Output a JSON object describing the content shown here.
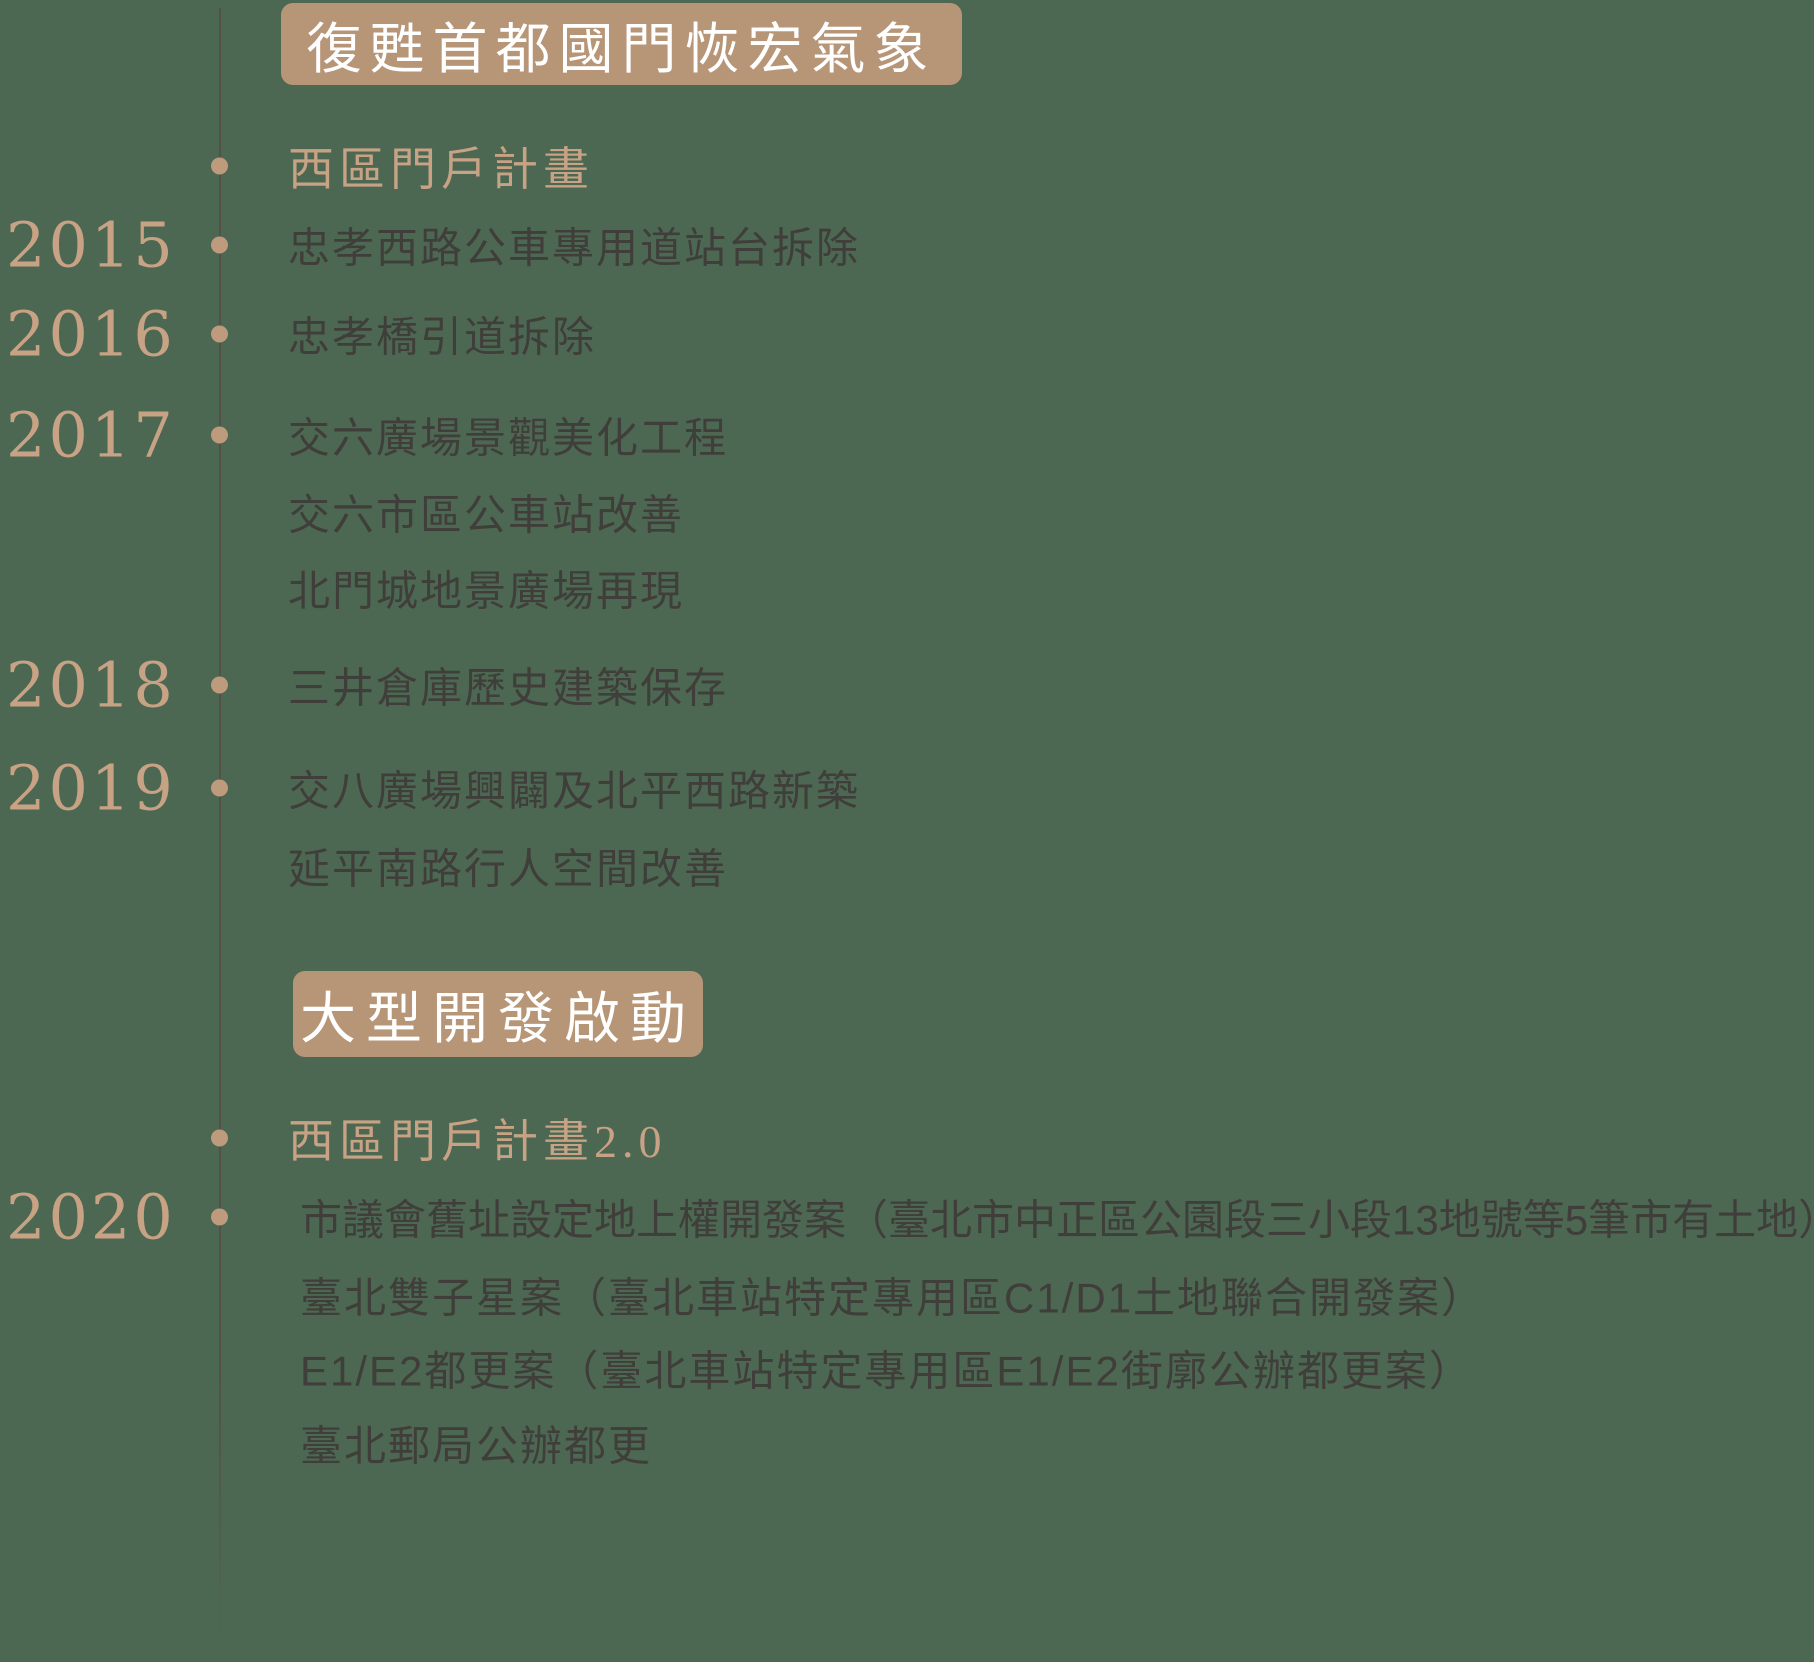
{
  "colors": {
    "background": "#4c6852",
    "header_box": "#b79577",
    "header_text": "#ffffff",
    "accent_text": "#c7a284",
    "dot": "#bf9b7d",
    "dark_text": "#403e3a",
    "axis_line": "#555149"
  },
  "timeline": {
    "sections": [
      {
        "header": "復甦首都國門恢宏氣象",
        "groups": [
          {
            "year": "",
            "items": [
              "西區門戶計畫"
            ]
          },
          {
            "year": "2015",
            "items": [
              "忠孝西路公車專用道站台拆除"
            ]
          },
          {
            "year": "2016",
            "items": [
              "忠孝橋引道拆除"
            ]
          },
          {
            "year": "2017",
            "items": [
              "交六廣場景觀美化工程",
              "交六市區公車站改善",
              "北門城地景廣場再現"
            ]
          },
          {
            "year": "2018",
            "items": [
              "三井倉庫歷史建築保存"
            ]
          },
          {
            "year": "2019",
            "items": [
              "交八廣場興闢及北平西路新築",
              "延平南路行人空間改善"
            ]
          }
        ]
      },
      {
        "header": "大型開發啟動",
        "groups": [
          {
            "year": "",
            "items": [
              "西區門戶計畫2.0"
            ]
          },
          {
            "year": "2020",
            "items": [
              "市議會舊址設定地上權開發案（臺北市中正區公園段三小段13地號等5筆市有土地）",
              "臺北雙子星案（臺北車站特定專用區C1/D1土地聯合開發案）",
              "E1/E2都更案（臺北車站特定專用區E1/E2街廓公辦都更案）",
              "臺北郵局公辦都更"
            ]
          }
        ]
      }
    ]
  }
}
